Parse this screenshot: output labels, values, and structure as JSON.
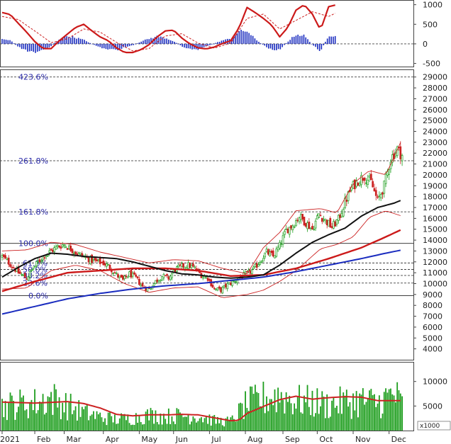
{
  "chart_data": [
    {
      "type": "line",
      "panel": "macd",
      "ylim": [
        -580,
        1120
      ],
      "y_ticks": [
        1000,
        500,
        0,
        -500
      ],
      "macd_line": [
        [
          0,
          800
        ],
        [
          5,
          750
        ],
        [
          10,
          520
        ],
        [
          15,
          300
        ],
        [
          20,
          60
        ],
        [
          25,
          -120
        ],
        [
          30,
          -120
        ],
        [
          35,
          80
        ],
        [
          40,
          250
        ],
        [
          45,
          420
        ],
        [
          50,
          500
        ],
        [
          55,
          330
        ],
        [
          60,
          180
        ],
        [
          65,
          80
        ],
        [
          70,
          -100
        ],
        [
          75,
          -220
        ],
        [
          80,
          -220
        ],
        [
          85,
          -150
        ],
        [
          90,
          -20
        ],
        [
          95,
          180
        ],
        [
          100,
          330
        ],
        [
          105,
          350
        ],
        [
          110,
          150
        ],
        [
          115,
          0
        ],
        [
          120,
          -100
        ],
        [
          125,
          -130
        ],
        [
          130,
          -80
        ],
        [
          135,
          10
        ],
        [
          140,
          80
        ],
        [
          145,
          400
        ],
        [
          150,
          930
        ],
        [
          155,
          800
        ],
        [
          160,
          650
        ],
        [
          165,
          480
        ],
        [
          170,
          180
        ],
        [
          175,
          420
        ],
        [
          180,
          860
        ],
        [
          185,
          1000
        ],
        [
          190,
          760
        ],
        [
          195,
          350
        ],
        [
          200,
          950
        ],
        [
          205,
          1000
        ]
      ],
      "signal_line": [
        [
          0,
          700
        ],
        [
          10,
          620
        ],
        [
          20,
          330
        ],
        [
          30,
          30
        ],
        [
          40,
          130
        ],
        [
          50,
          380
        ],
        [
          60,
          300
        ],
        [
          70,
          40
        ],
        [
          80,
          -180
        ],
        [
          90,
          -120
        ],
        [
          100,
          200
        ],
        [
          110,
          260
        ],
        [
          120,
          20
        ],
        [
          130,
          -110
        ],
        [
          140,
          20
        ],
        [
          150,
          650
        ],
        [
          160,
          760
        ],
        [
          170,
          380
        ],
        [
          180,
          600
        ],
        [
          190,
          820
        ],
        [
          200,
          700
        ],
        [
          205,
          800
        ]
      ],
      "histogram": [
        [
          0,
          120
        ],
        [
          5,
          90
        ],
        [
          10,
          -80
        ],
        [
          15,
          -170
        ],
        [
          20,
          -220
        ],
        [
          25,
          -150
        ],
        [
          30,
          -60
        ],
        [
          35,
          120
        ],
        [
          40,
          200
        ],
        [
          45,
          160
        ],
        [
          50,
          100
        ],
        [
          55,
          0
        ],
        [
          60,
          -90
        ],
        [
          65,
          -140
        ],
        [
          70,
          -160
        ],
        [
          75,
          -90
        ],
        [
          80,
          -40
        ],
        [
          85,
          60
        ],
        [
          90,
          130
        ],
        [
          95,
          190
        ],
        [
          100,
          150
        ],
        [
          105,
          70
        ],
        [
          110,
          -60
        ],
        [
          115,
          -130
        ],
        [
          120,
          -140
        ],
        [
          125,
          -70
        ],
        [
          130,
          10
        ],
        [
          135,
          90
        ],
        [
          140,
          130
        ],
        [
          145,
          310
        ],
        [
          150,
          330
        ],
        [
          155,
          120
        ],
        [
          160,
          -30
        ],
        [
          165,
          -150
        ],
        [
          170,
          -140
        ],
        [
          175,
          60
        ],
        [
          180,
          240
        ],
        [
          185,
          210
        ],
        [
          190,
          -20
        ],
        [
          195,
          -180
        ],
        [
          200,
          220
        ],
        [
          205,
          200
        ]
      ]
    },
    {
      "type": "candlestick",
      "panel": "price",
      "x_ticks": [
        {
          "label": "2021",
          "x": 0
        },
        {
          "label": "Feb",
          "x": 20
        },
        {
          "label": "Mar",
          "x": 38
        },
        {
          "label": "Apr",
          "x": 62
        },
        {
          "label": "May",
          "x": 84
        },
        {
          "label": "Jun",
          "x": 105
        },
        {
          "label": "Jul",
          "x": 127
        },
        {
          "label": "Aug",
          "x": 149
        },
        {
          "label": "Sep",
          "x": 172
        },
        {
          "label": "Oct",
          "x": 193
        },
        {
          "label": "Nov",
          "x": 215
        },
        {
          "label": "Dec",
          "x": 237
        }
      ],
      "x_range": [
        0,
        248
      ],
      "ylim": [
        3000,
        29700
      ],
      "y_ticks": [
        29000,
        28000,
        27000,
        26000,
        25000,
        24000,
        23000,
        22000,
        21000,
        20000,
        19000,
        18000,
        17000,
        16000,
        15000,
        14000,
        13000,
        12000,
        11000,
        10000,
        9000,
        8000,
        7000,
        6000,
        5000,
        4000
      ],
      "fibonacci_levels": [
        {
          "label": "423.6%",
          "value": 29000
        },
        {
          "label": "261.8%",
          "value": 21300
        },
        {
          "label": "161.8%",
          "value": 16600
        },
        {
          "label": "100.0%",
          "value": 13700
        },
        {
          "label": "61.8%",
          "value": 11900
        },
        {
          "label": "50.0%",
          "value": 11300
        },
        {
          "label": "38.2%",
          "value": 10750
        },
        {
          "label": "23.6%",
          "value": 10050
        },
        {
          "label": "0.0%",
          "value": 8900
        }
      ],
      "close_path": [
        [
          0,
          12500
        ],
        [
          5,
          11800
        ],
        [
          10,
          11000
        ],
        [
          15,
          10500
        ],
        [
          18,
          11200
        ],
        [
          22,
          12000
        ],
        [
          26,
          12600
        ],
        [
          30,
          13000
        ],
        [
          34,
          13400
        ],
        [
          38,
          13600
        ],
        [
          42,
          13200
        ],
        [
          46,
          12800
        ],
        [
          50,
          12500
        ],
        [
          54,
          12200
        ],
        [
          58,
          12000
        ],
        [
          62,
          11900
        ],
        [
          66,
          11500
        ],
        [
          70,
          10800
        ],
        [
          74,
          10300
        ],
        [
          78,
          10900
        ],
        [
          82,
          10500
        ],
        [
          86,
          9700
        ],
        [
          90,
          9500
        ],
        [
          94,
          10200
        ],
        [
          98,
          10700
        ],
        [
          102,
          10500
        ],
        [
          106,
          11300
        ],
        [
          110,
          11600
        ],
        [
          114,
          11700
        ],
        [
          118,
          11400
        ],
        [
          122,
          10800
        ],
        [
          126,
          10500
        ],
        [
          130,
          9500
        ],
        [
          134,
          9400
        ],
        [
          138,
          9900
        ],
        [
          142,
          10200
        ],
        [
          146,
          10600
        ],
        [
          150,
          10900
        ],
        [
          154,
          11300
        ],
        [
          158,
          12100
        ],
        [
          162,
          12900
        ],
        [
          166,
          12500
        ],
        [
          170,
          13500
        ],
        [
          174,
          14900
        ],
        [
          178,
          15400
        ],
        [
          182,
          16200
        ],
        [
          186,
          15600
        ],
        [
          190,
          15000
        ],
        [
          194,
          16400
        ],
        [
          198,
          15800
        ],
        [
          202,
          15200
        ],
        [
          206,
          15900
        ],
        [
          210,
          17500
        ],
        [
          214,
          18800
        ],
        [
          218,
          19500
        ],
        [
          222,
          19900
        ],
        [
          226,
          19300
        ],
        [
          230,
          17600
        ],
        [
          234,
          19000
        ],
        [
          238,
          21500
        ],
        [
          242,
          22400
        ],
        [
          245,
          21800
        ]
      ],
      "ma_short": [
        [
          0,
          10600
        ],
        [
          10,
          11500
        ],
        [
          20,
          12300
        ],
        [
          30,
          12800
        ],
        [
          40,
          12700
        ],
        [
          50,
          12500
        ],
        [
          60,
          12400
        ],
        [
          70,
          12300
        ],
        [
          80,
          12000
        ],
        [
          90,
          11600
        ],
        [
          100,
          11200
        ],
        [
          110,
          10900
        ],
        [
          120,
          10800
        ],
        [
          130,
          10600
        ],
        [
          140,
          10500
        ],
        [
          150,
          10600
        ],
        [
          160,
          10800
        ],
        [
          170,
          11700
        ],
        [
          180,
          12800
        ],
        [
          190,
          13800
        ],
        [
          200,
          14500
        ],
        [
          210,
          15100
        ],
        [
          220,
          16200
        ],
        [
          230,
          17000
        ],
        [
          240,
          17400
        ],
        [
          245,
          17700
        ]
      ],
      "ma_mid": [
        [
          0,
          9300
        ],
        [
          20,
          10200
        ],
        [
          40,
          11000
        ],
        [
          60,
          11200
        ],
        [
          80,
          11400
        ],
        [
          100,
          11400
        ],
        [
          120,
          11200
        ],
        [
          140,
          10700
        ],
        [
          160,
          10800
        ],
        [
          180,
          11400
        ],
        [
          200,
          12300
        ],
        [
          220,
          13300
        ],
        [
          235,
          14300
        ],
        [
          245,
          15000
        ]
      ],
      "ma_long": [
        [
          0,
          7200
        ],
        [
          20,
          7900
        ],
        [
          40,
          8600
        ],
        [
          60,
          9100
        ],
        [
          80,
          9500
        ],
        [
          100,
          9800
        ],
        [
          120,
          10000
        ],
        [
          140,
          10300
        ],
        [
          160,
          10600
        ],
        [
          180,
          11100
        ],
        [
          200,
          11700
        ],
        [
          220,
          12300
        ],
        [
          235,
          12800
        ],
        [
          245,
          13100
        ]
      ],
      "bollinger_upper": [
        [
          0,
          13000
        ],
        [
          15,
          13100
        ],
        [
          30,
          13800
        ],
        [
          45,
          13600
        ],
        [
          60,
          12900
        ],
        [
          75,
          12400
        ],
        [
          90,
          11900
        ],
        [
          105,
          12200
        ],
        [
          120,
          12100
        ],
        [
          135,
          11400
        ],
        [
          150,
          10900
        ],
        [
          160,
          13300
        ],
        [
          170,
          14700
        ],
        [
          180,
          16700
        ],
        [
          195,
          16900
        ],
        [
          205,
          16500
        ],
        [
          215,
          19200
        ],
        [
          225,
          20400
        ],
        [
          235,
          20000
        ],
        [
          245,
          23300
        ]
      ],
      "bollinger_lower": [
        [
          0,
          9500
        ],
        [
          15,
          9600
        ],
        [
          30,
          11200
        ],
        [
          45,
          11700
        ],
        [
          60,
          11200
        ],
        [
          75,
          10000
        ],
        [
          90,
          9200
        ],
        [
          105,
          9600
        ],
        [
          120,
          9700
        ],
        [
          135,
          8700
        ],
        [
          150,
          9000
        ],
        [
          160,
          9400
        ],
        [
          170,
          10200
        ],
        [
          180,
          11200
        ],
        [
          195,
          13200
        ],
        [
          205,
          13600
        ],
        [
          215,
          14300
        ],
        [
          225,
          16100
        ],
        [
          235,
          16700
        ],
        [
          245,
          16200
        ]
      ]
    },
    {
      "type": "bar",
      "panel": "volume",
      "unit_label": "x1000",
      "ylim": [
        0,
        14000
      ],
      "y_ticks": [
        10000,
        5000
      ],
      "volume_avg": [
        [
          0,
          5800
        ],
        [
          20,
          5600
        ],
        [
          40,
          5900
        ],
        [
          50,
          5500
        ],
        [
          60,
          4600
        ],
        [
          70,
          3300
        ],
        [
          80,
          3000
        ],
        [
          90,
          3200
        ],
        [
          100,
          3200
        ],
        [
          110,
          3300
        ],
        [
          120,
          3200
        ],
        [
          130,
          2600
        ],
        [
          140,
          2000
        ],
        [
          145,
          2100
        ],
        [
          150,
          3500
        ],
        [
          160,
          4900
        ],
        [
          170,
          6300
        ],
        [
          180,
          7000
        ],
        [
          190,
          6400
        ],
        [
          200,
          6700
        ],
        [
          210,
          6900
        ],
        [
          220,
          6800
        ],
        [
          230,
          6100
        ],
        [
          240,
          6100
        ],
        [
          245,
          6100
        ]
      ],
      "volume_profile": [
        [
          0,
          5600
        ],
        [
          10,
          6200
        ],
        [
          20,
          6400
        ],
        [
          30,
          7600
        ],
        [
          40,
          5800
        ],
        [
          50,
          4200
        ],
        [
          60,
          3200
        ],
        [
          70,
          2600
        ],
        [
          80,
          2900
        ],
        [
          90,
          3600
        ],
        [
          100,
          3300
        ],
        [
          110,
          3500
        ],
        [
          120,
          3400
        ],
        [
          130,
          2300
        ],
        [
          140,
          2100
        ],
        [
          150,
          6200
        ],
        [
          160,
          7400
        ],
        [
          170,
          8200
        ],
        [
          180,
          6900
        ],
        [
          190,
          6600
        ],
        [
          200,
          6000
        ],
        [
          210,
          6600
        ],
        [
          220,
          7000
        ],
        [
          230,
          6400
        ],
        [
          240,
          8600
        ],
        [
          245,
          6000
        ]
      ]
    }
  ]
}
